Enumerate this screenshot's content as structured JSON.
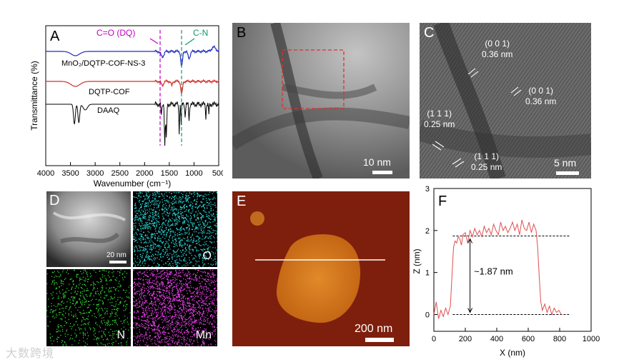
{
  "watermark": "大数跨境",
  "panel_labels": {
    "a": "A",
    "b": "B",
    "c": "C",
    "d": "D",
    "e": "E",
    "f": "F"
  },
  "panel_a": {
    "ylabel": "Transmittance (%)",
    "xlabel": "Wavenumber (cm⁻¹)",
    "xticks": [
      "4000",
      "3500",
      "3000",
      "2500",
      "2000",
      "1500",
      "1000",
      "500"
    ],
    "annot_dq": "C=O (DQ)",
    "annot_cn": "C-N",
    "series": [
      {
        "name": "MnO₂/DQTP-COF-NS-3",
        "color": "#1f2fbf"
      },
      {
        "name": "DQTP-COF",
        "color": "#d0302a"
      },
      {
        "name": "DAAQ",
        "color": "#000000"
      }
    ],
    "colors": {
      "dq": "#c000c0",
      "cn": "#119966"
    }
  },
  "panel_b": {
    "scale": "10 nm"
  },
  "panel_c": {
    "scale": "5 nm",
    "annotations": [
      {
        "plane": "(0 0 1)",
        "d": "0.36 nm"
      },
      {
        "plane": "(0 0 1)",
        "d": "0.36 nm"
      },
      {
        "plane": "(1 1 1)",
        "d": "0.25 nm"
      },
      {
        "plane": "(1 1 1)",
        "d": "0.25 nm"
      }
    ]
  },
  "panel_d": {
    "scale": "20 nm",
    "maps": [
      "O",
      "N",
      "Mn"
    ],
    "colors": {
      "O": "#2ad6d6",
      "N": "#33d633",
      "Mn": "#e23fe2"
    }
  },
  "panel_e": {
    "scale": "200 nm"
  },
  "chart_data": {
    "type": "line",
    "xlabel": "X (nm)",
    "ylabel": "Z (nm)",
    "xlim": [
      0,
      1000
    ],
    "ylim": [
      -0.4,
      3
    ],
    "xticks": [
      "0",
      "200",
      "400",
      "600",
      "800",
      "1000"
    ],
    "yticks": [
      "0",
      "1",
      "2",
      "3"
    ],
    "annotation": "~1.87 nm",
    "series_color": "#e05050",
    "x": [
      0,
      15,
      30,
      45,
      60,
      75,
      90,
      105,
      115,
      125,
      135,
      145,
      155,
      165,
      175,
      185,
      200,
      215,
      230,
      245,
      260,
      275,
      290,
      305,
      320,
      335,
      350,
      365,
      380,
      395,
      410,
      425,
      440,
      455,
      470,
      485,
      500,
      515,
      530,
      545,
      560,
      575,
      590,
      605,
      620,
      635,
      650,
      660,
      670,
      680,
      690,
      705,
      720,
      735,
      750,
      765,
      780,
      795,
      810
    ],
    "y": [
      0.0,
      0.3,
      -0.1,
      0.1,
      -0.05,
      0.15,
      0.0,
      0.2,
      0.9,
      1.6,
      1.75,
      1.7,
      1.85,
      1.8,
      1.65,
      1.9,
      1.95,
      1.7,
      2.0,
      1.85,
      2.05,
      1.9,
      2.0,
      1.85,
      2.1,
      1.95,
      2.05,
      1.9,
      2.15,
      2.0,
      1.9,
      2.2,
      2.0,
      2.1,
      1.95,
      2.05,
      2.2,
      2.0,
      2.15,
      1.9,
      2.25,
      2.05,
      2.0,
      2.2,
      1.95,
      2.15,
      2.0,
      1.6,
      0.9,
      0.3,
      0.1,
      0.25,
      0.05,
      0.2,
      0.0,
      0.15,
      0.05,
      0.1,
      0.0
    ]
  }
}
